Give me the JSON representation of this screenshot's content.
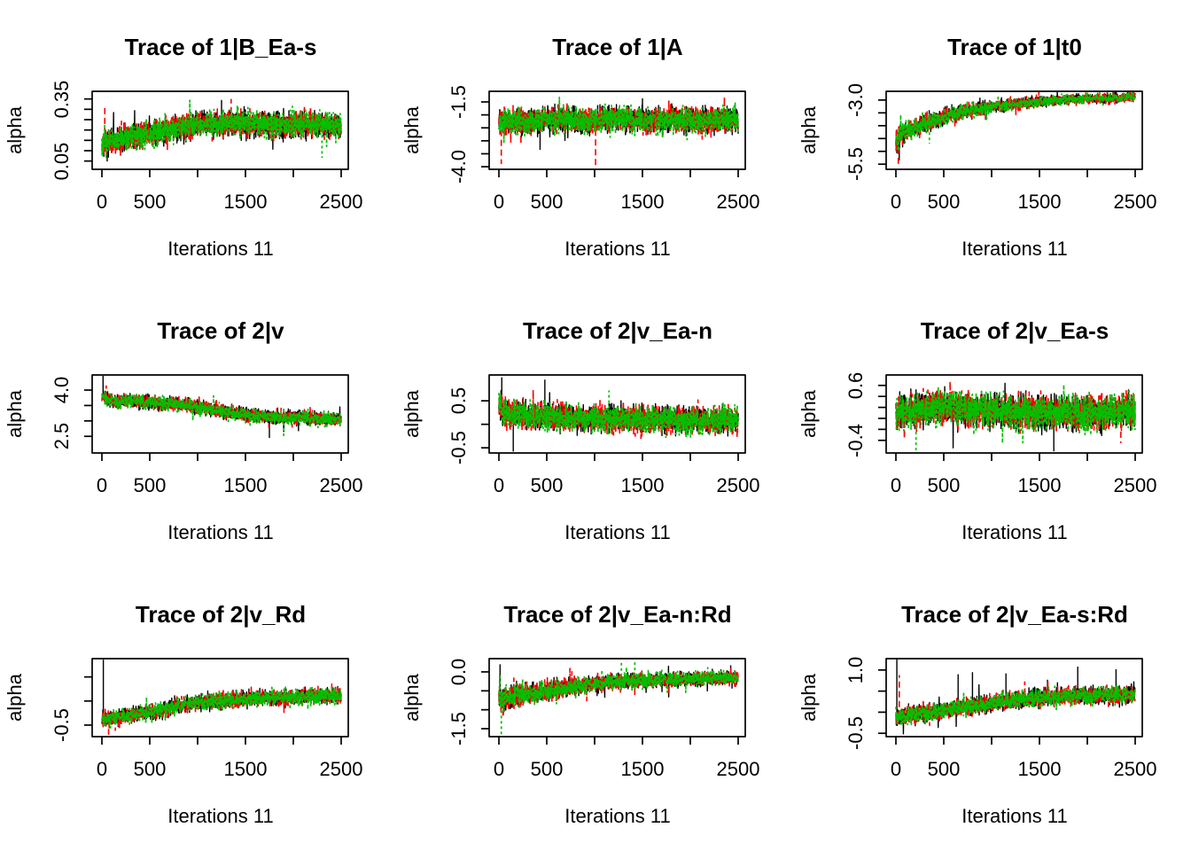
{
  "figure": {
    "background": "#ffffff",
    "text_color": "#000000",
    "chains": {
      "count": 3,
      "colors": [
        "#000000",
        "#FF0000",
        "#00C000"
      ],
      "line_styles": [
        "solid",
        "dashed",
        "dotted"
      ]
    }
  },
  "chart_data": [
    {
      "type": "line",
      "title": "Trace of 1|B_Ea-s",
      "xlabel": "Iterations 11",
      "ylabel": "alpha",
      "xlim": [
        0,
        2500
      ],
      "xticks": [
        0,
        500,
        1000,
        1500,
        2000,
        2500
      ],
      "xtick_labels": [
        "0",
        "500",
        "",
        "1500",
        "",
        "2500"
      ],
      "ylim": [
        0.01,
        0.387
      ],
      "yticks": [
        0.05,
        0.1,
        0.15,
        0.2,
        0.25,
        0.3,
        0.35
      ],
      "ytick_labels": [
        "0.05",
        "",
        "",
        "",
        "",
        "",
        "0.35"
      ],
      "trend": {
        "x": [
          0,
          60,
          150,
          300,
          500,
          700,
          900,
          1100,
          1300,
          1600,
          1900,
          2200,
          2500
        ],
        "y": [
          0.13,
          0.14,
          0.15,
          0.163,
          0.185,
          0.205,
          0.22,
          0.228,
          0.235,
          0.228,
          0.222,
          0.23,
          0.22
        ]
      },
      "noise": 0.052,
      "spikes": [
        {
          "chain": 1,
          "x": 30,
          "to": 0.31
        },
        {
          "chain": 0,
          "x": 55,
          "to": 0.048
        },
        {
          "chain": 0,
          "x": 1250,
          "to": 0.345
        },
        {
          "chain": 1,
          "x": 1350,
          "to": 0.35
        },
        {
          "chain": 2,
          "x": 2300,
          "to": 0.065
        }
      ]
    },
    {
      "type": "line",
      "title": "Trace of 1|A",
      "xlabel": "Iterations 11",
      "ylabel": "alpha",
      "xlim": [
        0,
        2500
      ],
      "xticks": [
        0,
        500,
        1000,
        1500,
        2000,
        2500
      ],
      "xtick_labels": [
        "0",
        "500",
        "",
        "1500",
        "",
        "2500"
      ],
      "ylim": [
        -4.1,
        -1.09
      ],
      "yticks": [
        -4.0,
        -3.5,
        -3.0,
        -2.5,
        -2.0,
        -1.5
      ],
      "ytick_labels": [
        "-4.0",
        "",
        "",
        "",
        "",
        "-1.5"
      ],
      "trend": {
        "x": [
          0,
          300,
          600,
          900,
          1200,
          1500,
          1800,
          2100,
          2500
        ],
        "y": [
          -2.2,
          -2.28,
          -2.18,
          -2.22,
          -2.15,
          -2.2,
          -2.18,
          -2.22,
          -2.15
        ]
      },
      "noise": 0.4,
      "spikes": [
        {
          "chain": 1,
          "x": 25,
          "to": -3.9
        },
        {
          "chain": 1,
          "x": 1010,
          "to": -3.95
        },
        {
          "chain": 0,
          "x": 430,
          "to": -3.35
        }
      ]
    },
    {
      "type": "line",
      "title": "Trace of 1|t0",
      "xlabel": "Iterations 11",
      "ylabel": "alpha",
      "xlim": [
        0,
        2500
      ],
      "xticks": [
        0,
        500,
        1000,
        1500,
        2000,
        2500
      ],
      "xtick_labels": [
        "0",
        "500",
        "",
        "1500",
        "",
        "2500"
      ],
      "ylim": [
        -5.7,
        -2.66
      ],
      "yticks": [
        -5.5,
        -5.0,
        -4.5,
        -4.0,
        -3.5,
        -3.0
      ],
      "ytick_labels": [
        "-5.5",
        "",
        "",
        "",
        "",
        "-3.0"
      ],
      "trend": {
        "x": [
          0,
          40,
          100,
          180,
          300,
          450,
          600,
          800,
          1100,
          1400,
          1700,
          2000,
          2300,
          2500
        ],
        "y": [
          -4.55,
          -4.45,
          -4.25,
          -4.1,
          -3.9,
          -3.72,
          -3.55,
          -3.4,
          -3.22,
          -3.1,
          -3.0,
          -2.95,
          -2.92,
          -2.85
        ]
      },
      "noise": [
        0.38,
        0.36,
        0.33,
        0.31,
        0.28,
        0.26,
        0.24,
        0.21,
        0.18,
        0.17,
        0.16,
        0.15,
        0.15,
        0.14
      ],
      "spikes": [
        {
          "chain": 1,
          "x": 25,
          "to": -5.62
        },
        {
          "chain": 0,
          "x": 35,
          "to": -5.35
        },
        {
          "chain": 2,
          "x": 350,
          "to": -4.7
        }
      ]
    },
    {
      "type": "line",
      "title": "Trace of 2|v",
      "xlabel": "Iterations 11",
      "ylabel": "alpha",
      "xlim": [
        0,
        2500
      ],
      "xticks": [
        0,
        500,
        1000,
        1500,
        2000,
        2500
      ],
      "xtick_labels": [
        "0",
        "500",
        "",
        "1500",
        "",
        "2500"
      ],
      "ylim": [
        1.96,
        4.49
      ],
      "yticks": [
        2.5,
        3.0,
        3.5,
        4.0
      ],
      "ytick_labels": [
        "2.5",
        "",
        "",
        "4.0"
      ],
      "trend": {
        "x": [
          0,
          50,
          150,
          300,
          500,
          700,
          900,
          1100,
          1300,
          1500,
          1800,
          2100,
          2500
        ],
        "y": [
          3.8,
          3.72,
          3.6,
          3.66,
          3.6,
          3.56,
          3.52,
          3.4,
          3.3,
          3.2,
          3.12,
          3.1,
          3.05
        ]
      },
      "noise": 0.18,
      "spikes": [
        {
          "chain": 0,
          "x": 12,
          "to": 4.46
        },
        {
          "chain": 1,
          "x": 45,
          "to": 4.15
        },
        {
          "chain": 0,
          "x": 1750,
          "to": 2.45
        },
        {
          "chain": 2,
          "x": 1900,
          "to": 2.5
        }
      ]
    },
    {
      "type": "line",
      "title": "Trace of 2|v_Ea-n",
      "xlabel": "Iterations 11",
      "ylabel": "alpha",
      "xlim": [
        0,
        2500
      ],
      "xticks": [
        0,
        500,
        1000,
        1500,
        2000,
        2500
      ],
      "xtick_labels": [
        "0",
        "500",
        "",
        "1500",
        "",
        "2500"
      ],
      "ylim": [
        -0.61,
        1.05
      ],
      "yticks": [
        -0.5,
        0.0,
        0.5
      ],
      "ytick_labels": [
        "-0.5",
        "",
        "0.5"
      ],
      "trend": {
        "x": [
          0,
          40,
          120,
          300,
          600,
          1000,
          1500,
          2000,
          2500
        ],
        "y": [
          0.45,
          0.28,
          0.2,
          0.18,
          0.15,
          0.12,
          0.1,
          0.08,
          0.1
        ]
      },
      "noise": 0.23,
      "spikes": [
        {
          "chain": 0,
          "x": 30,
          "to": 1.0
        },
        {
          "chain": 0,
          "x": 150,
          "to": -0.58
        },
        {
          "chain": 0,
          "x": 480,
          "to": 0.95
        },
        {
          "chain": 2,
          "x": 1150,
          "to": 0.72
        }
      ]
    },
    {
      "type": "line",
      "title": "Trace of 2|v_Ea-s",
      "xlabel": "Iterations 11",
      "ylabel": "alpha",
      "xlim": [
        0,
        2500
      ],
      "xticks": [
        0,
        500,
        1000,
        1500,
        2000,
        2500
      ],
      "xtick_labels": [
        "0",
        "500",
        "",
        "1500",
        "",
        "2500"
      ],
      "ylim": [
        -0.63,
        0.79
      ],
      "yticks": [
        -0.4,
        -0.2,
        0.0,
        0.2,
        0.4,
        0.6
      ],
      "ytick_labels": [
        "-0.4",
        "",
        "",
        "",
        "",
        "0.6"
      ],
      "trend": {
        "x": [
          0,
          200,
          400,
          600,
          900,
          1200,
          1600,
          2000,
          2500
        ],
        "y": [
          0.1,
          0.14,
          0.2,
          0.18,
          0.15,
          0.12,
          0.1,
          0.1,
          0.12
        ]
      },
      "noise": 0.25,
      "spikes": [
        {
          "chain": 2,
          "x": 210,
          "to": -0.58
        },
        {
          "chain": 0,
          "x": 1650,
          "to": -0.6
        },
        {
          "chain": 1,
          "x": 2350,
          "to": -0.45
        }
      ]
    },
    {
      "type": "line",
      "title": "Trace of 2|v_Rd",
      "xlabel": "Iterations 11",
      "ylabel": "alpha",
      "xlim": [
        0,
        2500
      ],
      "xticks": [
        0,
        500,
        1000,
        1500,
        2000,
        2500
      ],
      "xtick_labels": [
        "0",
        "500",
        "",
        "1500",
        "",
        "2500"
      ],
      "ylim": [
        -0.62,
        0.19
      ],
      "yticks": [
        0.0,
        -0.25,
        -0.5
      ],
      "ytick_labels": [
        "",
        "",
        "-0.5"
      ],
      "trend": {
        "x": [
          0,
          60,
          200,
          400,
          600,
          800,
          1000,
          1300,
          1600,
          2000,
          2500
        ],
        "y": [
          -0.43,
          -0.44,
          -0.41,
          -0.38,
          -0.35,
          -0.3,
          -0.27,
          -0.24,
          -0.22,
          -0.21,
          -0.19
        ]
      },
      "noise": 0.065,
      "spikes": [
        {
          "chain": 0,
          "x": 15,
          "to": 0.18
        },
        {
          "chain": 1,
          "x": 70,
          "to": -0.6
        },
        {
          "chain": 1,
          "x": 140,
          "to": -0.56
        }
      ]
    },
    {
      "type": "line",
      "title": "Trace of 2|v_Ea-n:Rd",
      "xlabel": "Iterations 11",
      "ylabel": "alpha",
      "xlim": [
        0,
        2500
      ],
      "xticks": [
        0,
        500,
        1000,
        1500,
        2000,
        2500
      ],
      "xtick_labels": [
        "0",
        "500",
        "",
        "1500",
        "",
        "2500"
      ],
      "ylim": [
        -1.71,
        0.35
      ],
      "yticks": [
        0.0,
        -0.5,
        -1.0,
        -1.5
      ],
      "ytick_labels": [
        "0.0",
        "",
        "",
        "-1.5"
      ],
      "trend": {
        "x": [
          0,
          80,
          200,
          400,
          600,
          800,
          1000,
          1300,
          1600,
          2000,
          2500
        ],
        "y": [
          -0.75,
          -0.7,
          -0.64,
          -0.55,
          -0.45,
          -0.38,
          -0.3,
          -0.25,
          -0.22,
          -0.18,
          -0.15
        ]
      },
      "noise": [
        0.26,
        0.25,
        0.24,
        0.22,
        0.21,
        0.19,
        0.17,
        0.16,
        0.16,
        0.15,
        0.15
      ],
      "spikes": [
        {
          "chain": 2,
          "x": 25,
          "to": -1.74
        },
        {
          "chain": 0,
          "x": 12,
          "to": 0.2
        },
        {
          "chain": 2,
          "x": 1280,
          "to": 0.3
        },
        {
          "chain": 2,
          "x": 1420,
          "to": 0.28
        }
      ]
    },
    {
      "type": "line",
      "title": "Trace of 2|v_Ea-s:Rd",
      "xlabel": "Iterations 11",
      "ylabel": "alpha",
      "xlim": [
        0,
        2500
      ],
      "xticks": [
        0,
        500,
        1000,
        1500,
        2000,
        2500
      ],
      "xtick_labels": [
        "0",
        "500",
        "",
        "1500",
        "",
        "2500"
      ],
      "ylim": [
        -0.58,
        1.27
      ],
      "yticks": [
        -0.5,
        0.0,
        0.5,
        1.0
      ],
      "ytick_labels": [
        "-0.5",
        "",
        "",
        "1.0"
      ],
      "trend": {
        "x": [
          0,
          80,
          200,
          400,
          600,
          900,
          1200,
          1500,
          1800,
          2100,
          2500
        ],
        "y": [
          -0.12,
          -0.1,
          -0.05,
          0.0,
          0.08,
          0.18,
          0.28,
          0.34,
          0.38,
          0.4,
          0.42
        ]
      },
      "noise": 0.17,
      "spikes": [
        {
          "chain": 0,
          "x": 10,
          "to": 1.26
        },
        {
          "chain": 1,
          "x": 35,
          "to": 0.88
        },
        {
          "chain": 0,
          "x": 650,
          "to": 0.9
        },
        {
          "chain": 0,
          "x": 800,
          "to": 0.95
        },
        {
          "chain": 0,
          "x": 1150,
          "to": 0.92
        },
        {
          "chain": 0,
          "x": 1900,
          "to": 1.08
        },
        {
          "chain": 0,
          "x": 2300,
          "to": 1.02
        }
      ]
    }
  ]
}
